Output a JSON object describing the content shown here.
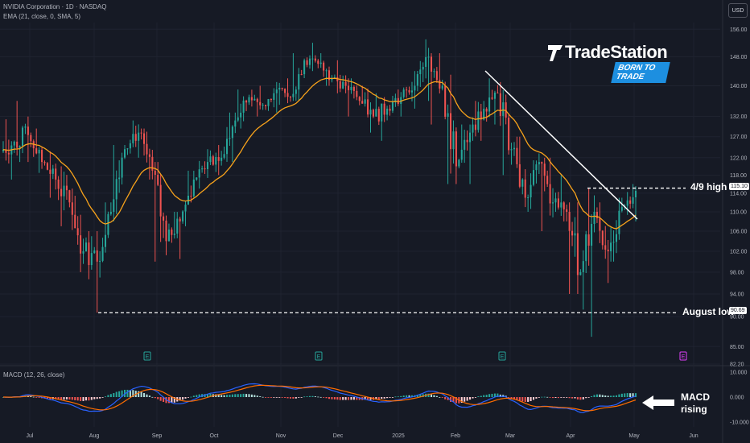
{
  "header": {
    "title": "NVIDIA Corporation · 1D · NASDAQ",
    "indicator": "EMA (21, close, 0, SMA, 5)",
    "macd_label": "MACD (12, 26, close)",
    "currency": "USD"
  },
  "branding": {
    "name": "TradeStation",
    "registered": "®",
    "tagline": "BORN TO TRADE"
  },
  "annotations": {
    "high_label": "4/9 high",
    "low_label": "August low",
    "macd_note_line1": "MACD",
    "macd_note_line2": "rising"
  },
  "price_tags": {
    "high": "115.10",
    "low": "90.69"
  },
  "earnings_marker": "E",
  "colors": {
    "background": "#161a25",
    "up": "#26a69a",
    "down": "#ef5350",
    "ema": "#f7a21b",
    "macd_line": "#2962ff",
    "signal_line": "#ff6d00",
    "earnings_future": "#e040fb"
  },
  "chart_data": [
    {
      "type": "candlestick",
      "title": "NVIDIA Corporation · 1D · NASDAQ",
      "x_ticks": [
        "Jul",
        "Aug",
        "Sep",
        "Oct",
        "Nov",
        "Dec",
        "2025",
        "Feb",
        "Mar",
        "Apr",
        "May",
        "Jun"
      ],
      "y_ticks": [
        156.0,
        148.0,
        140.0,
        132.0,
        127.0,
        122.0,
        118.0,
        114.0,
        110.0,
        106.0,
        102.0,
        98.0,
        94.0,
        90.0,
        85.0,
        82.2
      ],
      "y_scale": "log",
      "ylim": [
        82.2,
        158.0
      ],
      "ema_period": 21,
      "ohlc_weekly": [
        [
          123.5,
          131.3,
          117.0,
          125.8
        ],
        [
          125.8,
          136.0,
          121.0,
          127.4
        ],
        [
          127.4,
          129.0,
          118.5,
          121.0
        ],
        [
          121.0,
          123.5,
          113.0,
          117.0
        ],
        [
          117.0,
          120.0,
          107.0,
          112.0
        ],
        [
          112.0,
          115.0,
          98.0,
          102.0
        ],
        [
          102.0,
          106.0,
          90.7,
          100.0
        ],
        [
          100.0,
          112.0,
          97.0,
          110.0
        ],
        [
          110.0,
          125.0,
          108.0,
          124.0
        ],
        [
          124.0,
          131.0,
          122.0,
          128.0
        ],
        [
          128.0,
          129.0,
          117.0,
          119.0
        ],
        [
          119.0,
          121.0,
          100.0,
          104.0
        ],
        [
          104.0,
          110.0,
          100.5,
          108.0
        ],
        [
          108.0,
          119.0,
          107.0,
          117.0
        ],
        [
          117.0,
          124.0,
          115.0,
          121.0
        ],
        [
          121.0,
          125.0,
          118.0,
          122.0
        ],
        [
          122.0,
          133.0,
          121.0,
          131.0
        ],
        [
          131.0,
          139.0,
          129.0,
          137.0
        ],
        [
          137.0,
          140.0,
          132.0,
          135.0
        ],
        [
          135.0,
          141.0,
          133.0,
          139.0
        ],
        [
          139.0,
          142.0,
          135.0,
          137.0
        ],
        [
          137.0,
          149.0,
          136.0,
          147.0
        ],
        [
          147.0,
          152.0,
          144.0,
          146.0
        ],
        [
          146.0,
          149.0,
          140.0,
          142.0
        ],
        [
          142.0,
          147.0,
          138.0,
          140.0
        ],
        [
          140.0,
          142.0,
          132.0,
          136.0
        ],
        [
          136.0,
          140.0,
          128.0,
          132.0
        ],
        [
          132.0,
          138.0,
          126.0,
          134.0
        ],
        [
          134.0,
          139.0,
          132.0,
          137.0
        ],
        [
          137.0,
          144.0,
          134.0,
          140.0
        ],
        [
          140.0,
          153.0,
          136.0,
          148.0
        ],
        [
          148.0,
          149.0,
          130.0,
          140.0
        ],
        [
          140.0,
          143.0,
          116.0,
          120.0
        ],
        [
          120.0,
          130.0,
          116.0,
          128.0
        ],
        [
          128.0,
          136.0,
          126.0,
          134.0
        ],
        [
          134.0,
          142.0,
          130.0,
          138.0
        ],
        [
          138.0,
          141.0,
          118.0,
          124.0
        ],
        [
          124.0,
          127.0,
          111.0,
          113.0
        ],
        [
          113.0,
          123.0,
          110.0,
          121.0
        ],
        [
          121.0,
          122.0,
          106.0,
          112.0
        ],
        [
          112.0,
          118.0,
          108.0,
          110.0
        ],
        [
          110.0,
          112.0,
          94.0,
          98.0
        ],
        [
          98.0,
          115.1,
          86.6,
          110.0
        ],
        [
          110.0,
          112.0,
          96.0,
          102.0
        ],
        [
          102.0,
          113.0,
          100.0,
          111.0
        ],
        [
          111.0,
          116.0,
          108.0,
          114.5
        ]
      ],
      "markers": [
        {
          "label": "4/9 high",
          "value": 115.1
        },
        {
          "label": "August low",
          "value": 90.69
        }
      ]
    },
    {
      "type": "macd",
      "title": "MACD (12, 26, close)",
      "y_ticks": [
        10.0,
        0.0,
        -10.0
      ],
      "ylim": [
        -12,
        12
      ]
    }
  ]
}
